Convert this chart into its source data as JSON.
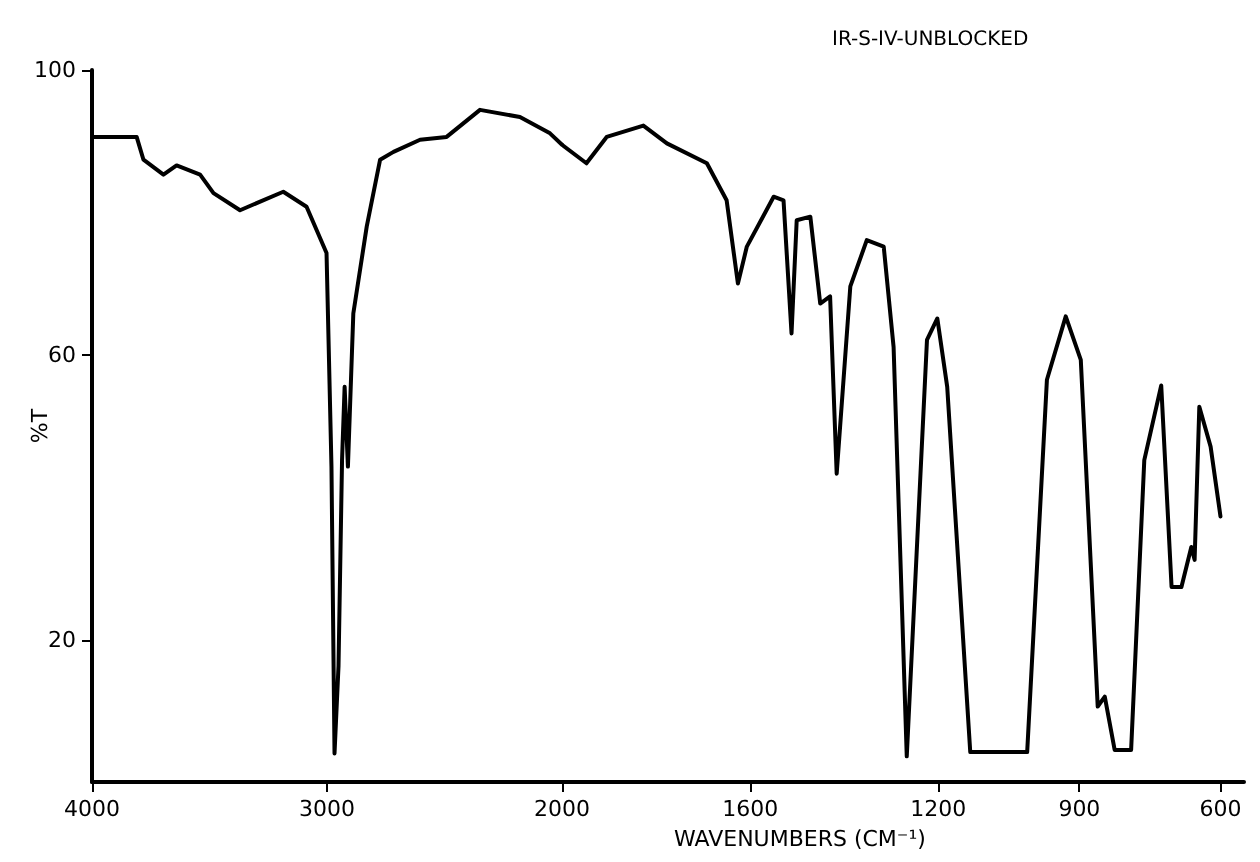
{
  "chart_data": [
    {
      "type": "line",
      "ylabel": "%T",
      "x": [
        4000,
        3810,
        3781,
        3696,
        3640,
        3540,
        3483,
        3370,
        3186,
        3087,
        3002,
        2981,
        2968,
        2951,
        2936,
        2925,
        2911,
        2888,
        2831,
        2774,
        2717,
        2604,
        2491,
        2349,
        2179,
        2051,
        2000
      ],
      "series": [
        {
          "color": "#000000",
          "values": [
            90.6,
            90.6,
            87.4,
            85.3,
            86.6,
            85.3,
            82.7,
            80.3,
            82.9,
            80.8,
            74.3,
            44.3,
            4.0,
            16.3,
            45.2,
            55.5,
            44.3,
            65.8,
            78,
            87.4,
            88.5,
            90.2,
            90.6,
            94.4,
            93.4,
            91.1,
            89.5
          ]
        }
      ],
      "xlim": [
        4000,
        2000
      ],
      "xticks": [
        4000,
        3000,
        2000
      ],
      "ylim": [
        0,
        100
      ],
      "yticks": [
        20,
        60,
        100
      ],
      "grid": false,
      "marker": "none",
      "line_style": "solid"
    },
    {
      "type": "line",
      "title": "IR-S-IV-UNBLOCKED",
      "xlabel": "WAVENUMBERS (CM⁻¹)",
      "x": [
        2000,
        1948,
        1905,
        1827,
        1777,
        1692,
        1650,
        1626,
        1607,
        1550,
        1529,
        1512,
        1501,
        1472,
        1451,
        1430,
        1416,
        1387,
        1352,
        1316,
        1295,
        1267,
        1224,
        1202,
        1181,
        1132,
        1011,
        969,
        929,
        897,
        861,
        846,
        825,
        790,
        762,
        726,
        704,
        683,
        662,
        655,
        645,
        621,
        600
      ],
      "series": [
        {
          "color": "#000000",
          "values": [
            89.5,
            86.9,
            90.6,
            92.2,
            89.7,
            86.9,
            81.7,
            70.0,
            75.2,
            82.2,
            81.7,
            63.0,
            78.9,
            79.4,
            67.2,
            68.2,
            43.3,
            69.6,
            76.1,
            75.2,
            61.1,
            3.6,
            62.1,
            65.1,
            55.5,
            4.2,
            4.2,
            56.5,
            65.4,
            59.3,
            10.6,
            12,
            4.5,
            4.5,
            45.2,
            55.7,
            27.4,
            27.4,
            33,
            31.2,
            52.7,
            47.1,
            37.3
          ]
        }
      ],
      "xlim": [
        2000,
        550
      ],
      "xticks": [
        1600,
        1200,
        900,
        600
      ],
      "ylim": [
        0,
        100
      ],
      "tick_labels": "x",
      "grid": false,
      "marker": "none",
      "line_style": "solid"
    }
  ]
}
